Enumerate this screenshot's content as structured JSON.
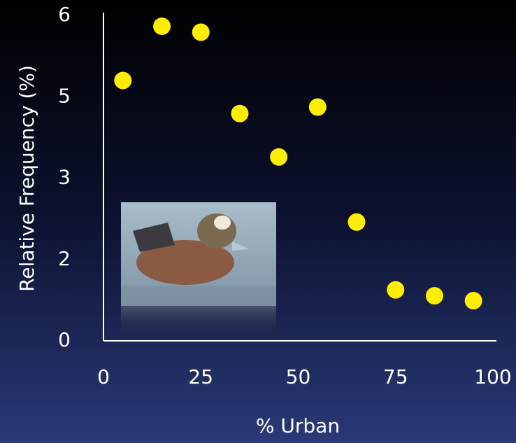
{
  "chart_data": {
    "type": "scatter",
    "x_label": "% Urban",
    "y_label": "Relative Frequency (%)",
    "x": [
      5,
      15,
      25,
      35,
      45,
      55,
      65,
      75,
      85,
      95
    ],
    "values": [
      4.8,
      5.8,
      5.69,
      4.19,
      3.39,
      4.31,
      2.19,
      0.94,
      0.83,
      0.74
    ],
    "color": "#ffee00",
    "xlim": [
      0,
      100
    ],
    "xticks": [
      0,
      25,
      50,
      75,
      100
    ],
    "ylim": [
      0,
      6
    ],
    "yticks": [
      0,
      {
        "value": 1.5,
        "label": "2"
      },
      3,
      {
        "value": 4.5,
        "label": "5"
      },
      6
    ]
  }
}
